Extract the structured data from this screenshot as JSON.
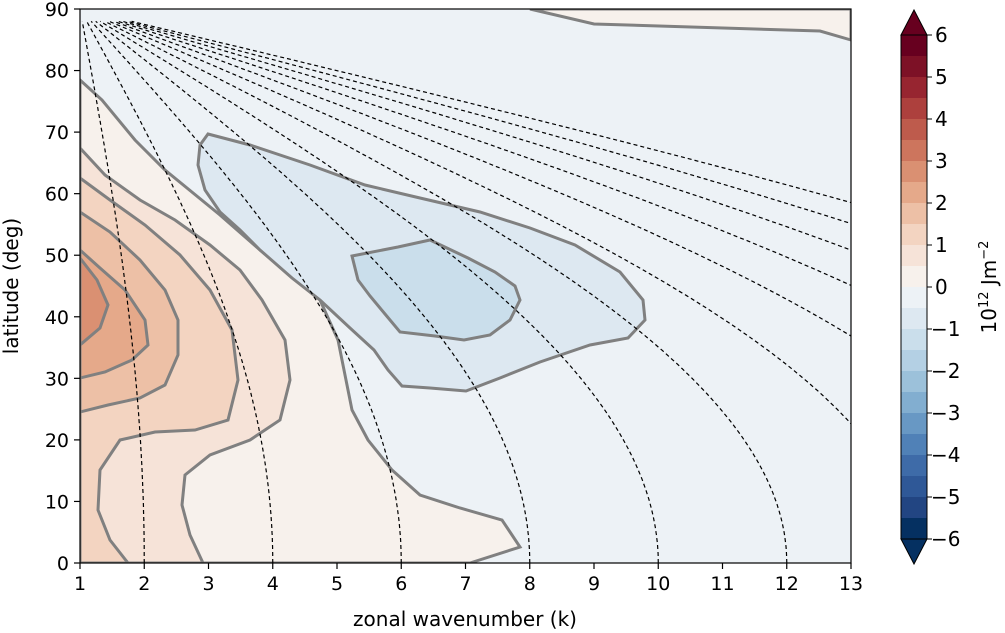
{
  "chart_data": {
    "type": "contour",
    "xlabel": "zonal wavenumber (k)",
    "ylabel": "latitude (deg)",
    "xlim": [
      1,
      13
    ],
    "ylim": [
      0,
      90
    ],
    "x_ticks": [
      "1",
      "2",
      "3",
      "4",
      "5",
      "6",
      "7",
      "8",
      "9",
      "10",
      "11",
      "12",
      "13"
    ],
    "y_ticks": [
      "0",
      "10",
      "20",
      "30",
      "40",
      "50",
      "60",
      "70",
      "80",
      "90"
    ],
    "colorbar": {
      "label_base": "10",
      "label_exp": "12",
      "label_unit": "Jm",
      "label_unit_exp": "−2",
      "range": [
        -6,
        6
      ],
      "ticks": [
        "−6",
        "−5",
        "−4",
        "−3",
        "−2",
        "−1",
        "0",
        "1",
        "2",
        "3",
        "4",
        "5",
        "6"
      ],
      "extend": "both"
    },
    "colors": {
      "pos": [
        "#f7f1ec",
        "#f6e3d8",
        "#f3d4c1",
        "#edc0a6",
        "#e5a98a",
        "#da9072",
        "#cd755d",
        "#be5b4c",
        "#ad403d",
        "#972530",
        "#7d1126",
        "#67001f"
      ],
      "neg": [
        "#edf2f6",
        "#dde8f1",
        "#cadeeb",
        "#b4d0e4",
        "#9cc1da",
        "#82aed0",
        "#6898c4",
        "#5081b7",
        "#3e6ba8",
        "#2f5897",
        "#224582",
        "#053061"
      ],
      "contour_line": "#808080"
    },
    "field_description_levels": [
      -1.5,
      -0.5,
      0.5,
      1,
      1.5,
      2,
      2.5,
      3.5
    ],
    "dashed_curves_k_at_equator": [
      2,
      4,
      6,
      8,
      10,
      12,
      14,
      16,
      18,
      20,
      22,
      24
    ]
  }
}
